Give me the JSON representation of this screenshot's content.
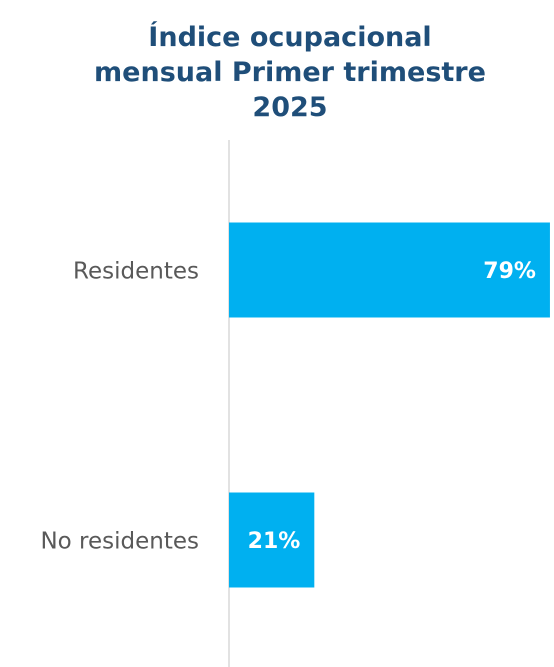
{
  "chart_data": {
    "type": "barh",
    "title": "Índice ocupacional\nmensual Primer trimestre\n2025",
    "categories": [
      "Residentes",
      "No residentes"
    ],
    "values": [
      79,
      21
    ],
    "value_labels": [
      "79%",
      "21%"
    ],
    "color": "#00b0f0",
    "xlim": [
      0,
      80
    ]
  }
}
